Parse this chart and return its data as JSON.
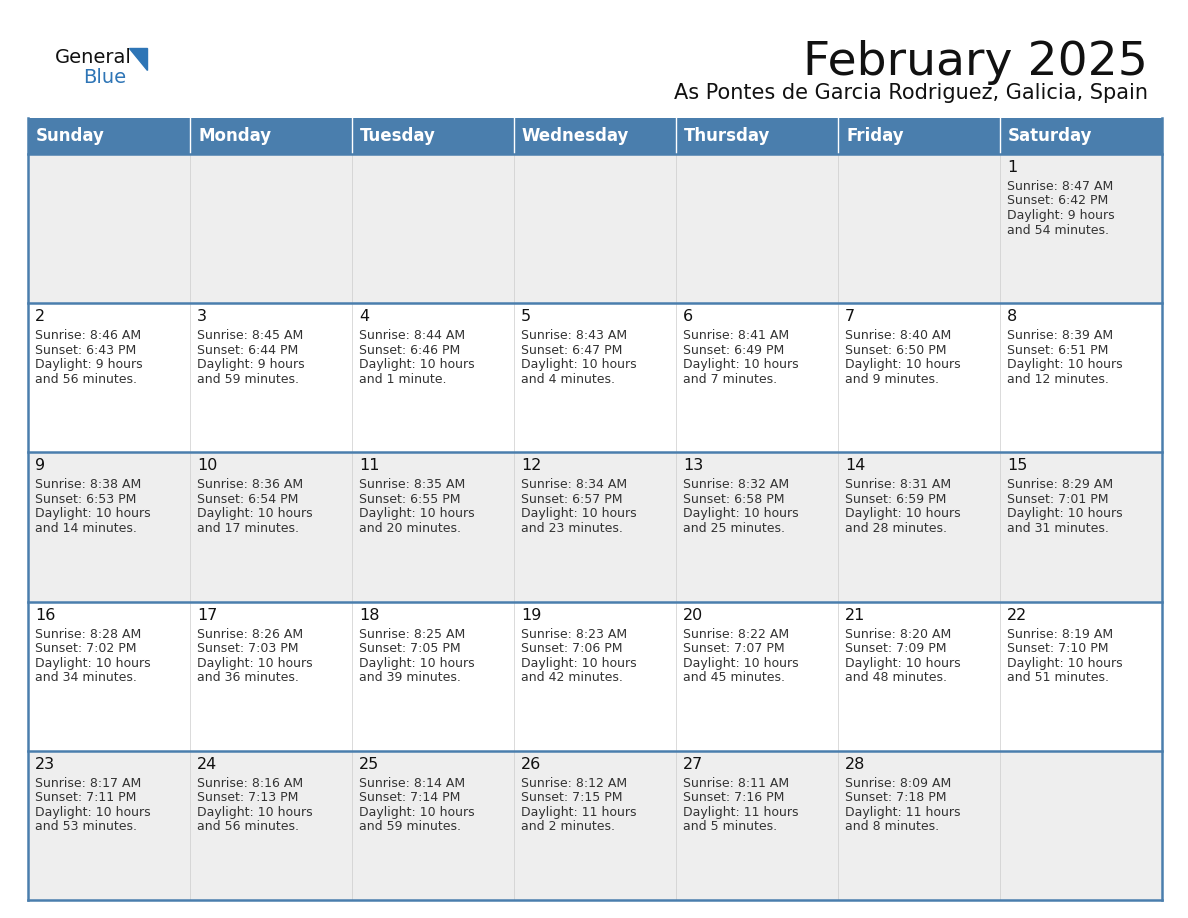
{
  "title": "February 2025",
  "subtitle": "As Pontes de Garcia Rodriguez, Galicia, Spain",
  "days_of_week": [
    "Sunday",
    "Monday",
    "Tuesday",
    "Wednesday",
    "Thursday",
    "Friday",
    "Saturday"
  ],
  "header_bg": "#4A7EAD",
  "header_text": "#FFFFFF",
  "row_bg_odd": "#EEEEEE",
  "row_bg_even": "#FFFFFF",
  "cell_text_color": "#333333",
  "day_num_color": "#111111",
  "border_color": "#4A7EAD",
  "title_color": "#111111",
  "subtitle_color": "#111111",
  "logo_general_color": "#111111",
  "logo_blue_color": "#2E75B6",
  "calendar_data": [
    [
      null,
      null,
      null,
      null,
      null,
      null,
      {
        "day": 1,
        "sunrise": "8:47 AM",
        "sunset": "6:42 PM",
        "daylight_line1": "Daylight: 9 hours",
        "daylight_line2": "and 54 minutes."
      }
    ],
    [
      {
        "day": 2,
        "sunrise": "8:46 AM",
        "sunset": "6:43 PM",
        "daylight_line1": "Daylight: 9 hours",
        "daylight_line2": "and 56 minutes."
      },
      {
        "day": 3,
        "sunrise": "8:45 AM",
        "sunset": "6:44 PM",
        "daylight_line1": "Daylight: 9 hours",
        "daylight_line2": "and 59 minutes."
      },
      {
        "day": 4,
        "sunrise": "8:44 AM",
        "sunset": "6:46 PM",
        "daylight_line1": "Daylight: 10 hours",
        "daylight_line2": "and 1 minute."
      },
      {
        "day": 5,
        "sunrise": "8:43 AM",
        "sunset": "6:47 PM",
        "daylight_line1": "Daylight: 10 hours",
        "daylight_line2": "and 4 minutes."
      },
      {
        "day": 6,
        "sunrise": "8:41 AM",
        "sunset": "6:49 PM",
        "daylight_line1": "Daylight: 10 hours",
        "daylight_line2": "and 7 minutes."
      },
      {
        "day": 7,
        "sunrise": "8:40 AM",
        "sunset": "6:50 PM",
        "daylight_line1": "Daylight: 10 hours",
        "daylight_line2": "and 9 minutes."
      },
      {
        "day": 8,
        "sunrise": "8:39 AM",
        "sunset": "6:51 PM",
        "daylight_line1": "Daylight: 10 hours",
        "daylight_line2": "and 12 minutes."
      }
    ],
    [
      {
        "day": 9,
        "sunrise": "8:38 AM",
        "sunset": "6:53 PM",
        "daylight_line1": "Daylight: 10 hours",
        "daylight_line2": "and 14 minutes."
      },
      {
        "day": 10,
        "sunrise": "8:36 AM",
        "sunset": "6:54 PM",
        "daylight_line1": "Daylight: 10 hours",
        "daylight_line2": "and 17 minutes."
      },
      {
        "day": 11,
        "sunrise": "8:35 AM",
        "sunset": "6:55 PM",
        "daylight_line1": "Daylight: 10 hours",
        "daylight_line2": "and 20 minutes."
      },
      {
        "day": 12,
        "sunrise": "8:34 AM",
        "sunset": "6:57 PM",
        "daylight_line1": "Daylight: 10 hours",
        "daylight_line2": "and 23 minutes."
      },
      {
        "day": 13,
        "sunrise": "8:32 AM",
        "sunset": "6:58 PM",
        "daylight_line1": "Daylight: 10 hours",
        "daylight_line2": "and 25 minutes."
      },
      {
        "day": 14,
        "sunrise": "8:31 AM",
        "sunset": "6:59 PM",
        "daylight_line1": "Daylight: 10 hours",
        "daylight_line2": "and 28 minutes."
      },
      {
        "day": 15,
        "sunrise": "8:29 AM",
        "sunset": "7:01 PM",
        "daylight_line1": "Daylight: 10 hours",
        "daylight_line2": "and 31 minutes."
      }
    ],
    [
      {
        "day": 16,
        "sunrise": "8:28 AM",
        "sunset": "7:02 PM",
        "daylight_line1": "Daylight: 10 hours",
        "daylight_line2": "and 34 minutes."
      },
      {
        "day": 17,
        "sunrise": "8:26 AM",
        "sunset": "7:03 PM",
        "daylight_line1": "Daylight: 10 hours",
        "daylight_line2": "and 36 minutes."
      },
      {
        "day": 18,
        "sunrise": "8:25 AM",
        "sunset": "7:05 PM",
        "daylight_line1": "Daylight: 10 hours",
        "daylight_line2": "and 39 minutes."
      },
      {
        "day": 19,
        "sunrise": "8:23 AM",
        "sunset": "7:06 PM",
        "daylight_line1": "Daylight: 10 hours",
        "daylight_line2": "and 42 minutes."
      },
      {
        "day": 20,
        "sunrise": "8:22 AM",
        "sunset": "7:07 PM",
        "daylight_line1": "Daylight: 10 hours",
        "daylight_line2": "and 45 minutes."
      },
      {
        "day": 21,
        "sunrise": "8:20 AM",
        "sunset": "7:09 PM",
        "daylight_line1": "Daylight: 10 hours",
        "daylight_line2": "and 48 minutes."
      },
      {
        "day": 22,
        "sunrise": "8:19 AM",
        "sunset": "7:10 PM",
        "daylight_line1": "Daylight: 10 hours",
        "daylight_line2": "and 51 minutes."
      }
    ],
    [
      {
        "day": 23,
        "sunrise": "8:17 AM",
        "sunset": "7:11 PM",
        "daylight_line1": "Daylight: 10 hours",
        "daylight_line2": "and 53 minutes."
      },
      {
        "day": 24,
        "sunrise": "8:16 AM",
        "sunset": "7:13 PM",
        "daylight_line1": "Daylight: 10 hours",
        "daylight_line2": "and 56 minutes."
      },
      {
        "day": 25,
        "sunrise": "8:14 AM",
        "sunset": "7:14 PM",
        "daylight_line1": "Daylight: 10 hours",
        "daylight_line2": "and 59 minutes."
      },
      {
        "day": 26,
        "sunrise": "8:12 AM",
        "sunset": "7:15 PM",
        "daylight_line1": "Daylight: 11 hours",
        "daylight_line2": "and 2 minutes."
      },
      {
        "day": 27,
        "sunrise": "8:11 AM",
        "sunset": "7:16 PM",
        "daylight_line1": "Daylight: 11 hours",
        "daylight_line2": "and 5 minutes."
      },
      {
        "day": 28,
        "sunrise": "8:09 AM",
        "sunset": "7:18 PM",
        "daylight_line1": "Daylight: 11 hours",
        "daylight_line2": "and 8 minutes."
      },
      null
    ]
  ]
}
